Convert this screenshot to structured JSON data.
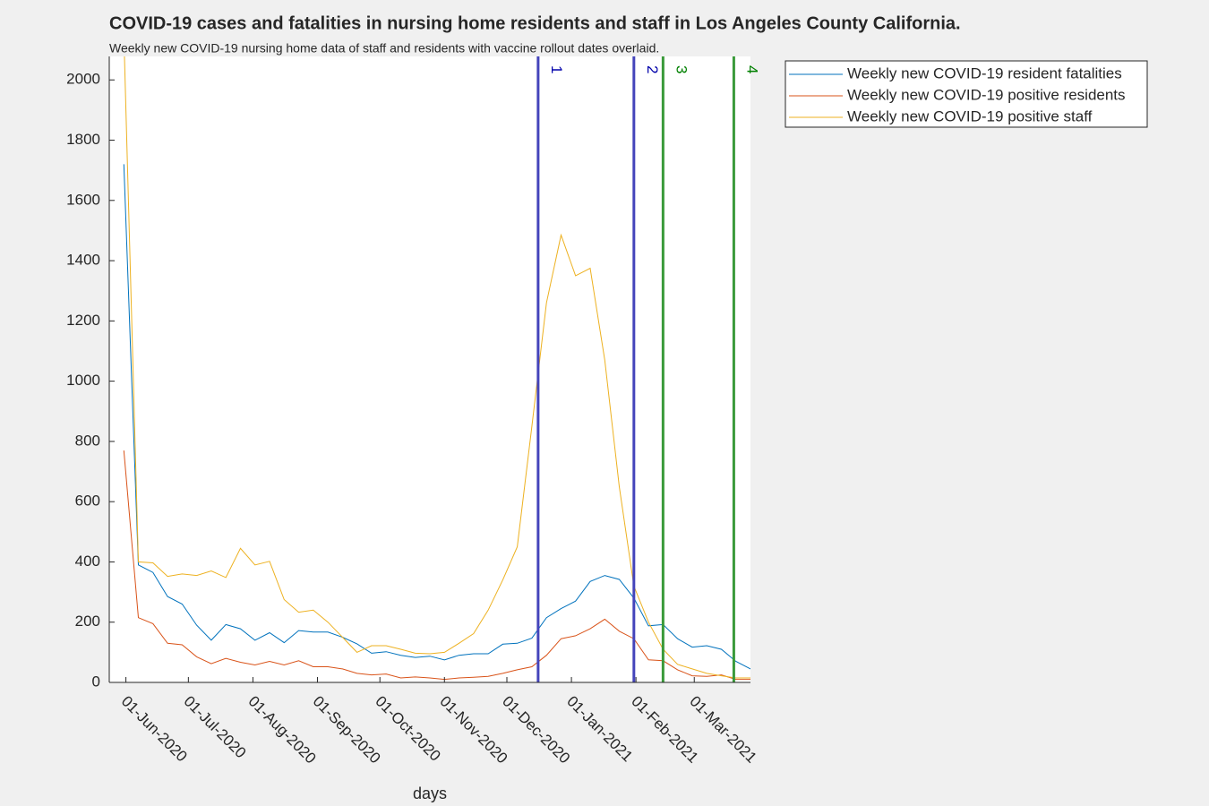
{
  "chart_data": {
    "type": "line",
    "title": "COVID-19 cases and fatalities in nursing home residents and staff in Los Angeles County California.",
    "subtitle": "Weekly new COVID-19 nursing home data of staff and residents with vaccine rollout dates overlaid.",
    "x_label": "days",
    "x_start": "2020-05-31",
    "x_step_days": 7,
    "xlim": [
      "2020-05-24",
      "2021-03-28"
    ],
    "xticks": [
      {
        "value": "2020-06-01",
        "label": "01-Jun-2020"
      },
      {
        "value": "2020-07-01",
        "label": "01-Jul-2020"
      },
      {
        "value": "2020-08-01",
        "label": "01-Aug-2020"
      },
      {
        "value": "2020-09-01",
        "label": "01-Sep-2020"
      },
      {
        "value": "2020-10-01",
        "label": "01-Oct-2020"
      },
      {
        "value": "2020-11-01",
        "label": "01-Nov-2020"
      },
      {
        "value": "2020-12-01",
        "label": "01-Dec-2020"
      },
      {
        "value": "2021-01-01",
        "label": "01-Jan-2021"
      },
      {
        "value": "2021-02-01",
        "label": "01-Feb-2021"
      },
      {
        "value": "2021-03-01",
        "label": "01-Mar-2021"
      }
    ],
    "ylim": [
      0,
      2078
    ],
    "yticks": [
      0,
      200,
      400,
      600,
      800,
      1000,
      1200,
      1400,
      1600,
      1800,
      2000
    ],
    "legend": "outside-top-right",
    "series": [
      {
        "name": "Weekly new COVID-19 resident fatalities",
        "color": "#0072bd",
        "values": [
          1720,
          390,
          365,
          285,
          260,
          190,
          140,
          192,
          178,
          140,
          165,
          132,
          172,
          167,
          167,
          150,
          128,
          97,
          102,
          90,
          83,
          87,
          75,
          90,
          95,
          95,
          127,
          130,
          147,
          215,
          245,
          270,
          335,
          355,
          342,
          280,
          188,
          192,
          145,
          117,
          122,
          110,
          70,
          45
        ]
      },
      {
        "name": "Weekly new COVID-19 positive residents",
        "color": "#d95319",
        "values": [
          770,
          215,
          195,
          130,
          125,
          85,
          62,
          80,
          67,
          58,
          70,
          58,
          72,
          52,
          52,
          45,
          30,
          25,
          28,
          15,
          18,
          15,
          10,
          15,
          17,
          20,
          30,
          42,
          52,
          90,
          145,
          155,
          178,
          210,
          170,
          145,
          75,
          72,
          42,
          22,
          20,
          25,
          10,
          10
        ]
      },
      {
        "name": "Weekly new COVID-19 positive staff",
        "color": "#edb120",
        "values": [
          2150,
          400,
          397,
          352,
          360,
          355,
          370,
          348,
          445,
          390,
          402,
          275,
          233,
          240,
          200,
          150,
          100,
          122,
          122,
          110,
          97,
          95,
          100,
          130,
          162,
          240,
          340,
          450,
          850,
          1260,
          1485,
          1350,
          1375,
          1070,
          650,
          320,
          200,
          110,
          60,
          45,
          30,
          22,
          15,
          15
        ]
      }
    ],
    "vlines": [
      {
        "label": "1",
        "x": "2020-12-16",
        "color": "#4444bb",
        "label_color": "#0000aa"
      },
      {
        "label": "2",
        "x": "2021-01-31",
        "color": "#4444bb",
        "label_color": "#0000aa"
      },
      {
        "label": "3",
        "x": "2021-02-14",
        "color": "#3a9a3a",
        "label_color": "#008000"
      },
      {
        "label": "4",
        "x": "2021-03-20",
        "color": "#3a9a3a",
        "label_color": "#008000"
      }
    ]
  }
}
